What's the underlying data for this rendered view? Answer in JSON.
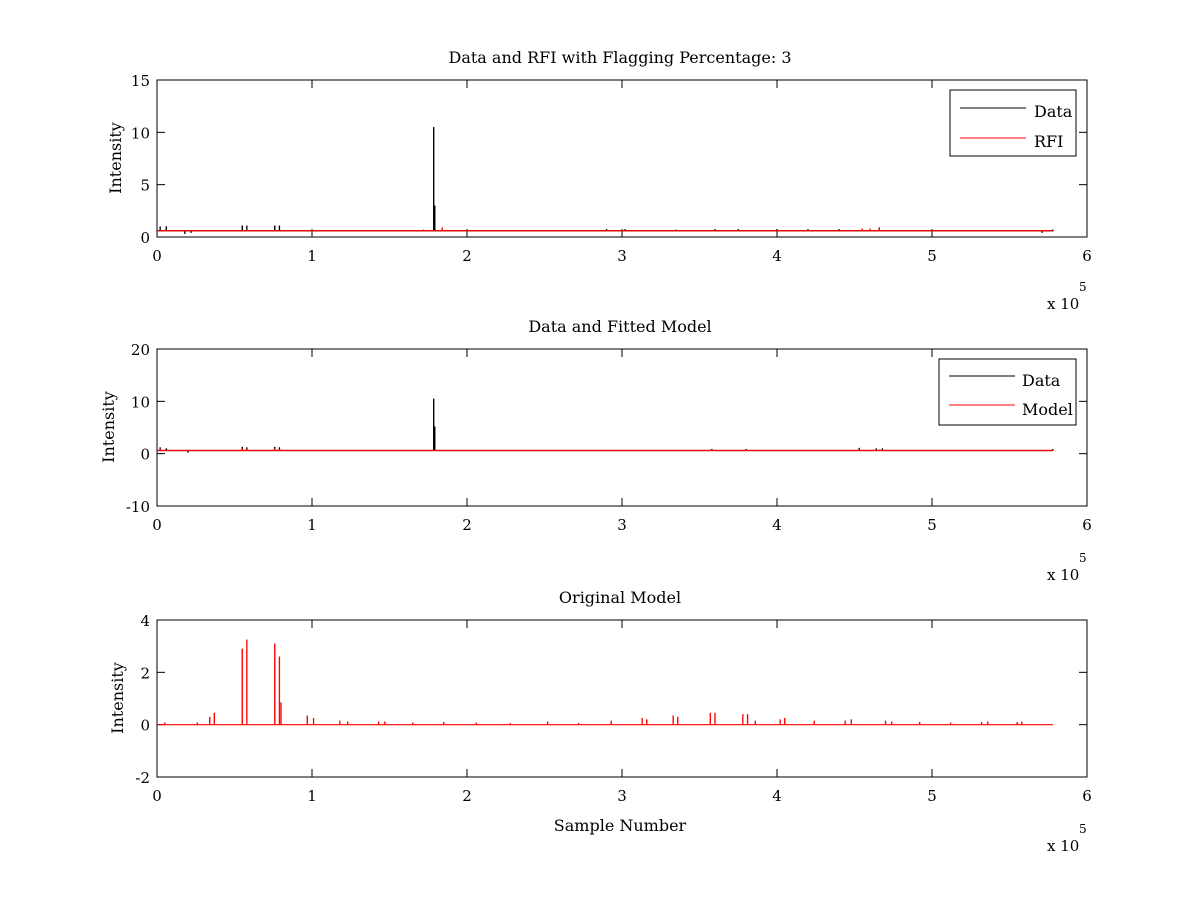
{
  "chart_data": [
    {
      "type": "line",
      "title": "Data and RFI with Flagging Percentage: 3",
      "xlabel": "",
      "ylabel": "Intensity",
      "xlim": [
        0,
        600000
      ],
      "ylim": [
        0,
        15
      ],
      "xticks": [
        0,
        100000,
        200000,
        300000,
        400000,
        500000,
        600000
      ],
      "xtick_labels": [
        "0",
        "1",
        "2",
        "3",
        "4",
        "5",
        "6"
      ],
      "yticks": [
        0,
        5,
        10,
        15
      ],
      "ytick_labels": [
        "0",
        "5",
        "10",
        "15"
      ],
      "x_multiplier": {
        "base": "x 10",
        "exponent": "5"
      },
      "legend_position": "top-right",
      "series": [
        {
          "name": "Data",
          "color": "#000000",
          "baseline": 0.6,
          "spikes": [
            [
              2000,
              1.0
            ],
            [
              6000,
              1.0
            ],
            [
              18000,
              0.3
            ],
            [
              22000,
              0.4
            ],
            [
              55000,
              1.1
            ],
            [
              58000,
              1.1
            ],
            [
              76000,
              1.1
            ],
            [
              79000,
              1.1
            ],
            [
              178500,
              10.5
            ],
            [
              179200,
              3.0
            ],
            [
              290000,
              0.75
            ],
            [
              302000,
              0.75
            ],
            [
              335000,
              0.7
            ],
            [
              360000,
              0.75
            ],
            [
              375000,
              0.75
            ],
            [
              400000,
              0.75
            ],
            [
              420000,
              0.75
            ],
            [
              440000,
              0.75
            ],
            [
              466000,
              0.9
            ],
            [
              571000,
              0.4
            ],
            [
              578000,
              0.7
            ]
          ]
        },
        {
          "name": "RFI",
          "color": "#ff0000",
          "baseline": 0.6,
          "spikes": [
            [
              172000,
              0.7
            ],
            [
              184000,
              0.9
            ],
            [
              455000,
              0.8
            ],
            [
              460000,
              0.8
            ],
            [
              466000,
              0.85
            ]
          ]
        }
      ]
    },
    {
      "type": "line",
      "title": "Data and Fitted Model",
      "xlabel": "",
      "ylabel": "Intensity",
      "xlim": [
        0,
        600000
      ],
      "ylim": [
        -10,
        20
      ],
      "xticks": [
        0,
        100000,
        200000,
        300000,
        400000,
        500000,
        600000
      ],
      "xtick_labels": [
        "0",
        "1",
        "2",
        "3",
        "4",
        "5",
        "6"
      ],
      "yticks": [
        -10,
        0,
        10,
        20
      ],
      "ytick_labels": [
        "-10",
        "0",
        "10",
        "20"
      ],
      "x_multiplier": {
        "base": "x 10",
        "exponent": "5"
      },
      "legend_position": "top-right",
      "series": [
        {
          "name": "Data",
          "color": "#000000",
          "baseline": 0.6,
          "spikes": [
            [
              2000,
              1.2
            ],
            [
              6000,
              1.0
            ],
            [
              20000,
              0.2
            ],
            [
              55000,
              1.3
            ],
            [
              58000,
              1.2
            ],
            [
              76000,
              1.3
            ],
            [
              79000,
              1.2
            ],
            [
              178500,
              10.5
            ],
            [
              179200,
              5.2
            ],
            [
              358000,
              0.9
            ],
            [
              380000,
              0.9
            ],
            [
              453000,
              1.1
            ],
            [
              464000,
              1.0
            ],
            [
              468000,
              1.0
            ],
            [
              578000,
              0.9
            ]
          ]
        },
        {
          "name": "Model",
          "color": "#ff0000",
          "baseline": 0.6,
          "spikes": [
            [
              2000,
              0.9
            ],
            [
              55000,
              1.0
            ],
            [
              58000,
              0.9
            ],
            [
              76000,
              1.0
            ],
            [
              79000,
              0.9
            ],
            [
              453000,
              0.8
            ],
            [
              466000,
              0.8
            ],
            [
              578000,
              0.8
            ]
          ]
        }
      ]
    },
    {
      "type": "line",
      "title": "Original Model",
      "xlabel": "Sample Number",
      "ylabel": "Intensity",
      "xlim": [
        0,
        600000
      ],
      "ylim": [
        -2,
        4
      ],
      "xticks": [
        0,
        100000,
        200000,
        300000,
        400000,
        500000,
        600000
      ],
      "xtick_labels": [
        "0",
        "1",
        "2",
        "3",
        "4",
        "5",
        "6"
      ],
      "yticks": [
        -2,
        0,
        2,
        4
      ],
      "ytick_labels": [
        "-2",
        "0",
        "2",
        "4"
      ],
      "x_multiplier": {
        "base": "x 10",
        "exponent": "5"
      },
      "legend_position": "none",
      "series": [
        {
          "name": "",
          "color": "#ff0000",
          "baseline": 0.0,
          "spikes": [
            [
              5000,
              0.08
            ],
            [
              26000,
              0.08
            ],
            [
              34000,
              0.3
            ],
            [
              37000,
              0.45
            ],
            [
              55000,
              2.9
            ],
            [
              58000,
              3.25
            ],
            [
              76000,
              3.1
            ],
            [
              79000,
              2.6
            ],
            [
              80000,
              0.85
            ],
            [
              97000,
              0.35
            ],
            [
              101000,
              0.25
            ],
            [
              118000,
              0.15
            ],
            [
              123000,
              0.12
            ],
            [
              143000,
              0.12
            ],
            [
              147000,
              0.12
            ],
            [
              165000,
              0.08
            ],
            [
              185000,
              0.1
            ],
            [
              206000,
              0.08
            ],
            [
              228000,
              0.06
            ],
            [
              252000,
              0.12
            ],
            [
              272000,
              0.06
            ],
            [
              293000,
              0.15
            ],
            [
              313000,
              0.25
            ],
            [
              316000,
              0.2
            ],
            [
              333000,
              0.35
            ],
            [
              336000,
              0.3
            ],
            [
              357000,
              0.45
            ],
            [
              360000,
              0.45
            ],
            [
              378000,
              0.4
            ],
            [
              381000,
              0.4
            ],
            [
              386000,
              0.15
            ],
            [
              402000,
              0.2
            ],
            [
              405000,
              0.25
            ],
            [
              424000,
              0.15
            ],
            [
              444000,
              0.15
            ],
            [
              448000,
              0.2
            ],
            [
              470000,
              0.15
            ],
            [
              474000,
              0.12
            ],
            [
              492000,
              0.1
            ],
            [
              512000,
              0.08
            ],
            [
              532000,
              0.1
            ],
            [
              536000,
              0.12
            ],
            [
              555000,
              0.1
            ],
            [
              558000,
              0.12
            ]
          ]
        }
      ]
    }
  ]
}
